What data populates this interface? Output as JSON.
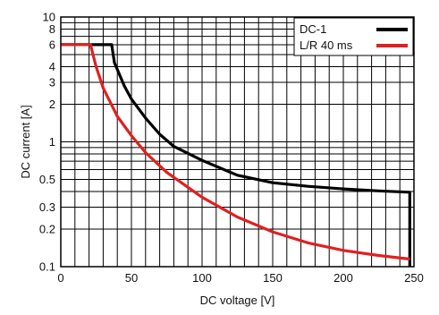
{
  "chart_data": {
    "type": "line",
    "title": "",
    "xlabel": "DC voltage [V]",
    "ylabel": "DC current [A]",
    "xlim": [
      0,
      250
    ],
    "ylim": [
      0.1,
      10
    ],
    "yscale": "log",
    "grid": true,
    "legend_position": "top-right",
    "x_ticks": [
      0,
      50,
      100,
      150,
      200,
      250
    ],
    "x_tick_labels": [
      "0",
      "50",
      "100",
      "150",
      "200",
      "250"
    ],
    "y_ticks": [
      0.1,
      0.2,
      0.3,
      0.5,
      1,
      2,
      3,
      4,
      6,
      8,
      10
    ],
    "y_tick_labels": [
      "0.1",
      "0.2",
      "0.3",
      "0.5",
      "1",
      "2",
      "3",
      "4",
      "6",
      "8",
      "10"
    ],
    "x_minor_step": 10,
    "y_grid": [
      0.1,
      0.2,
      0.3,
      0.4,
      0.5,
      0.6,
      0.7,
      0.8,
      0.9,
      1,
      2,
      3,
      4,
      5,
      6,
      7,
      8,
      9,
      10
    ],
    "series": [
      {
        "name": "DC-1",
        "color": "#000000",
        "points": [
          [
            0,
            6
          ],
          [
            36,
            6
          ],
          [
            38,
            4.3
          ],
          [
            45,
            2.8
          ],
          [
            50,
            2.2
          ],
          [
            60,
            1.55
          ],
          [
            70,
            1.15
          ],
          [
            80,
            0.92
          ],
          [
            100,
            0.71
          ],
          [
            125,
            0.54
          ],
          [
            150,
            0.47
          ],
          [
            175,
            0.44
          ],
          [
            200,
            0.42
          ],
          [
            225,
            0.405
          ],
          [
            247,
            0.395
          ],
          [
            247,
            0.1
          ]
        ]
      },
      {
        "name": "L/R 40 ms",
        "color": "#e02020",
        "points": [
          [
            0,
            6
          ],
          [
            21,
            6
          ],
          [
            25,
            4
          ],
          [
            30,
            2.7
          ],
          [
            40,
            1.6
          ],
          [
            50,
            1.12
          ],
          [
            60,
            0.82
          ],
          [
            75,
            0.57
          ],
          [
            100,
            0.36
          ],
          [
            125,
            0.25
          ],
          [
            150,
            0.19
          ],
          [
            175,
            0.155
          ],
          [
            200,
            0.135
          ],
          [
            225,
            0.123
          ],
          [
            247,
            0.115
          ]
        ]
      }
    ]
  }
}
